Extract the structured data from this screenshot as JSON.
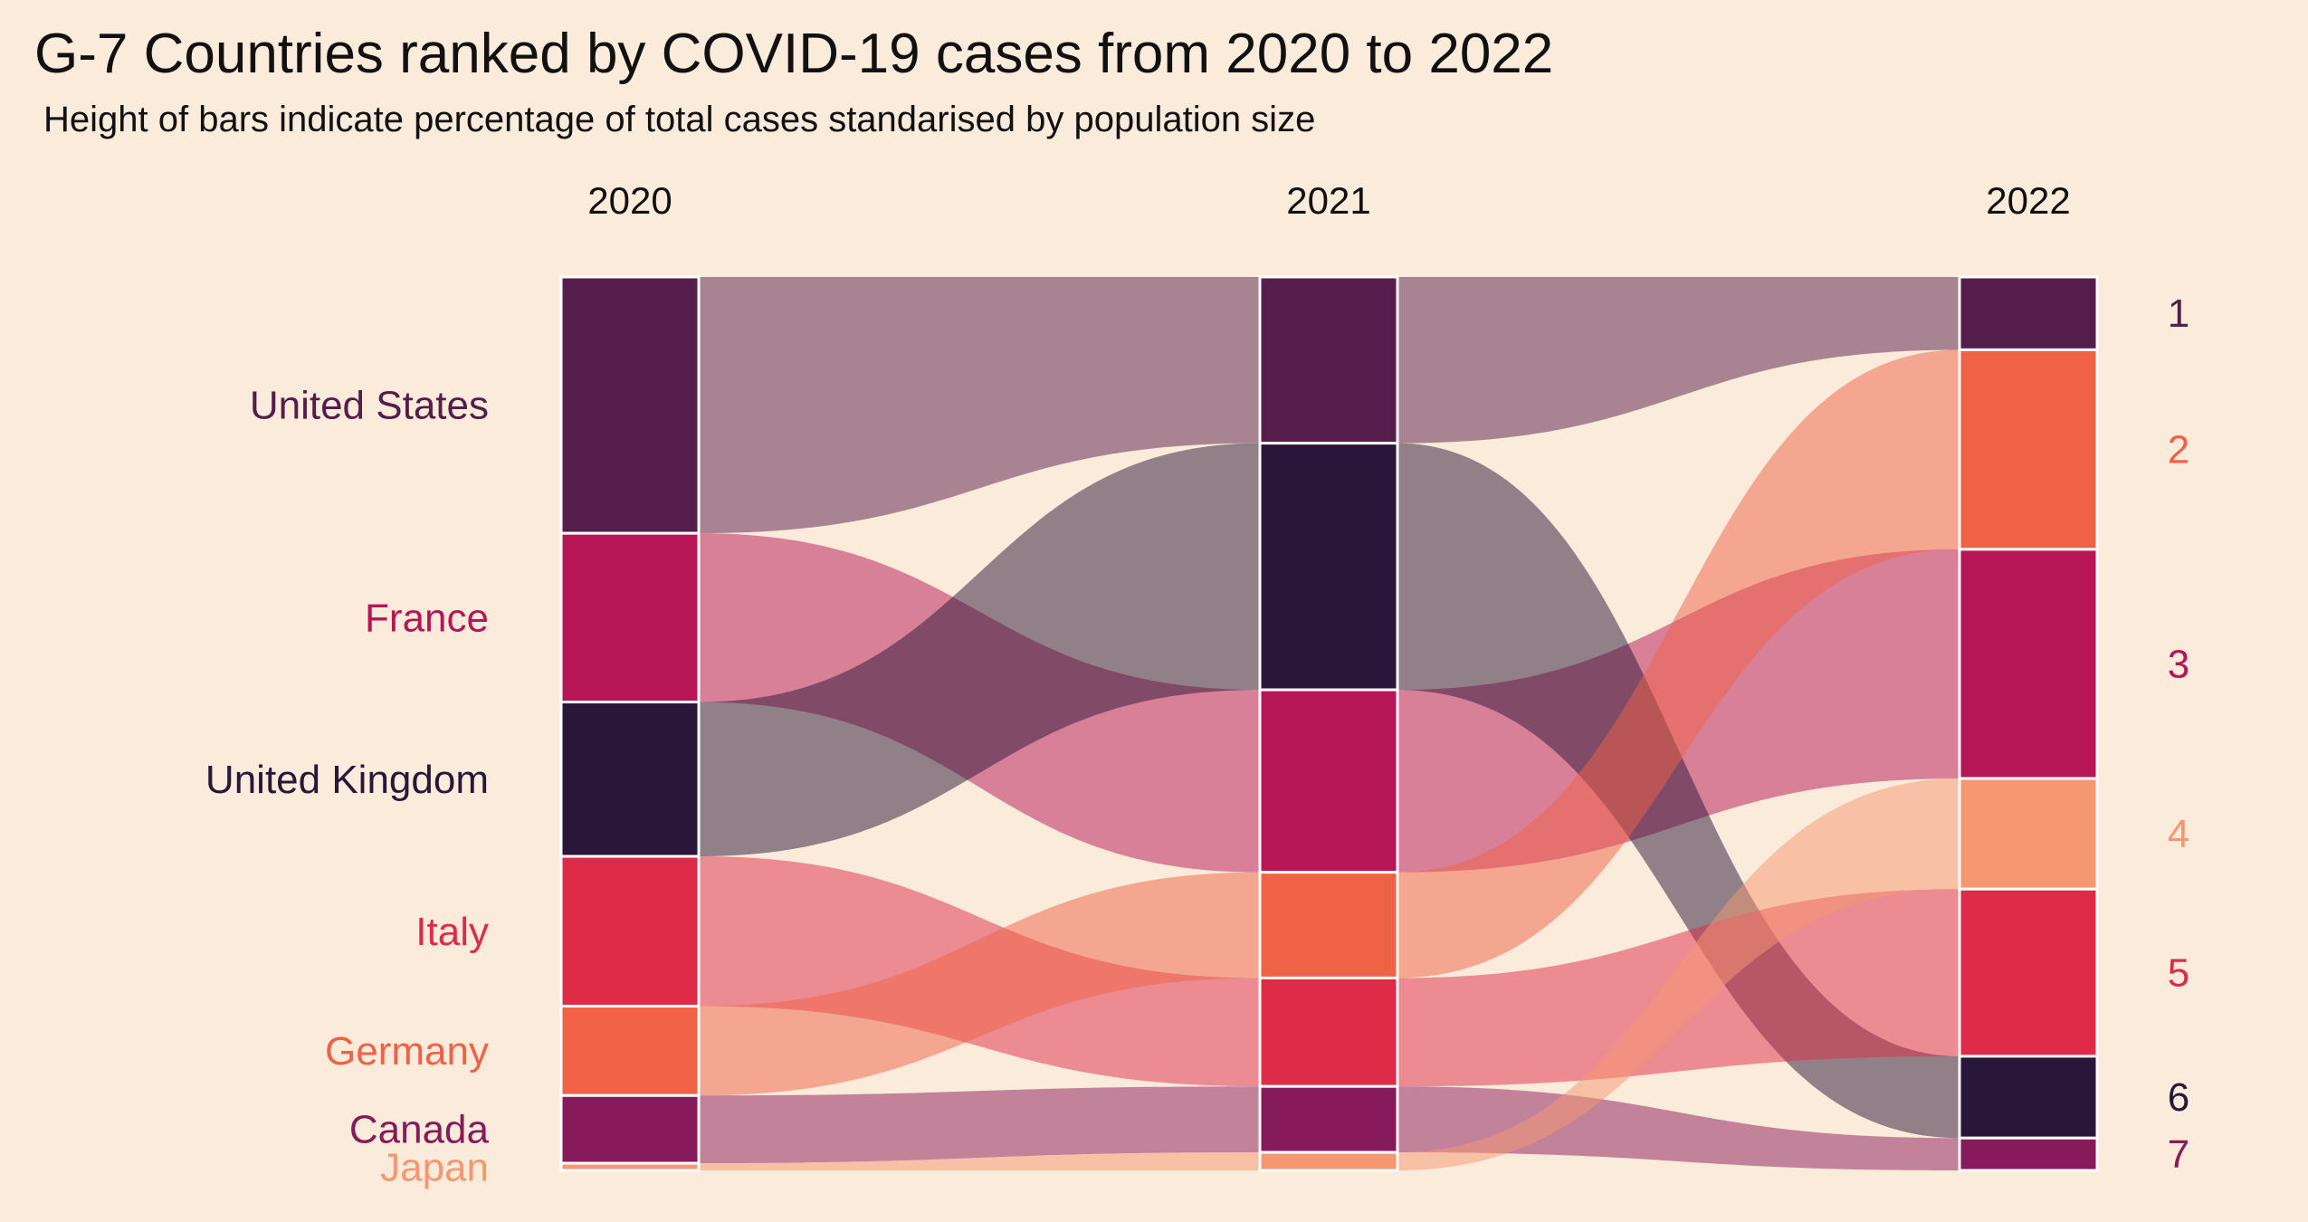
{
  "title": "G-7 Countries ranked by COVID-19 cases from 2020 to 2022",
  "subtitle": "Height of bars indicate percentage of total cases standarised by population size",
  "chart_data": {
    "type": "alluvial",
    "years": [
      "2020",
      "2021",
      "2022"
    ],
    "ranks": [
      "1",
      "2",
      "3",
      "4",
      "5",
      "6",
      "7"
    ],
    "colors": {
      "United States": "#551D4C",
      "France": "#B61656",
      "United Kingdom": "#2A1638",
      "Italy": "#DE2C48",
      "Germany": "#F06245",
      "Canada": "#871A5A",
      "Japan": "#F59872"
    },
    "order": {
      "2020": [
        "United States",
        "France",
        "United Kingdom",
        "Italy",
        "Germany",
        "Canada",
        "Japan"
      ],
      "2021": [
        "United States",
        "United Kingdom",
        "France",
        "Germany",
        "Italy",
        "Canada",
        "Japan"
      ],
      "2022": [
        "United States",
        "Germany",
        "France",
        "Japan",
        "Italy",
        "United Kingdom",
        "Canada"
      ]
    },
    "shares_percent": {
      "2020": {
        "United States": 28.4,
        "France": 18.7,
        "United Kingdom": 17.1,
        "Italy": 16.6,
        "Germany": 9.9,
        "Canada": 7.5,
        "Japan": 0.8
      },
      "2021": {
        "United States": 18.4,
        "United Kingdom": 27.3,
        "France": 20.2,
        "Germany": 11.7,
        "Italy": 12.0,
        "Canada": 7.3,
        "Japan": 2.0
      },
      "2022": {
        "United States": 8.1,
        "Germany": 22.2,
        "France": 25.5,
        "Japan": 12.3,
        "Italy": 18.6,
        "United Kingdom": 9.1,
        "Canada": 3.6
      }
    }
  }
}
